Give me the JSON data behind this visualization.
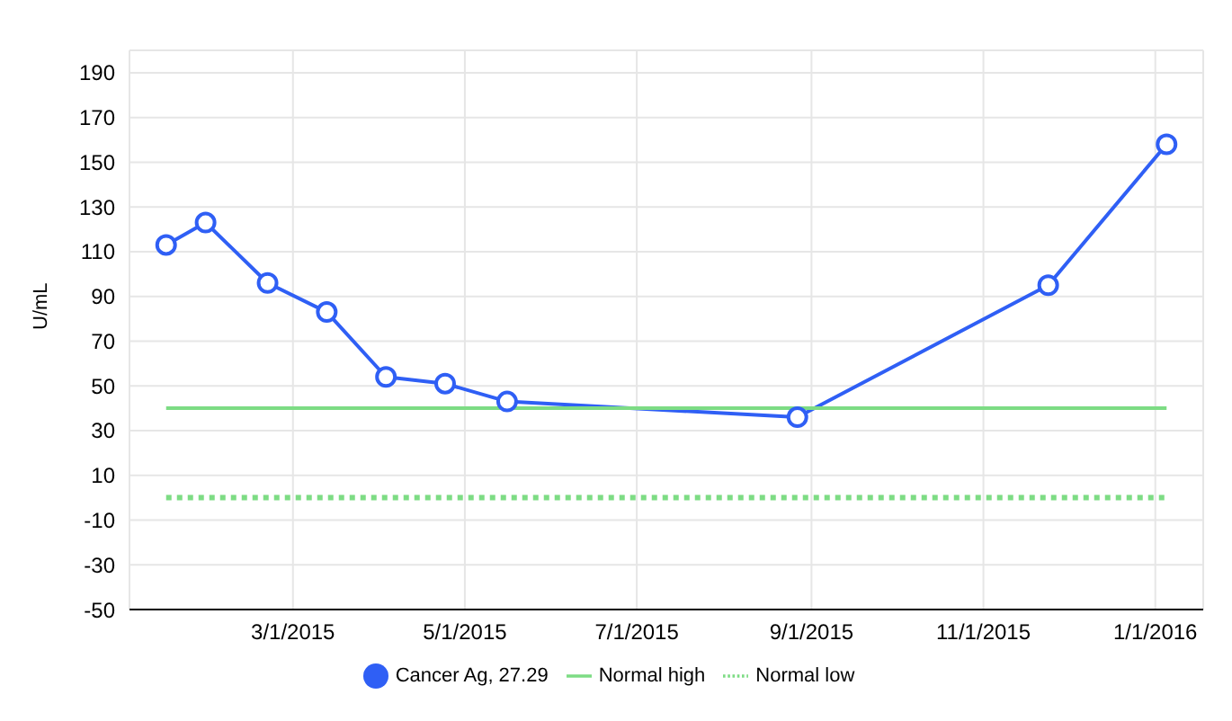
{
  "chart_data": {
    "type": "line",
    "ylabel": "U/mL",
    "xlim": [
      "2015-01-02",
      "2016-01-18"
    ],
    "xticks": [
      {
        "value": "2015-03-01",
        "label": "3/1/2015"
      },
      {
        "value": "2015-05-01",
        "label": "5/1/2015"
      },
      {
        "value": "2015-07-01",
        "label": "7/1/2015"
      },
      {
        "value": "2015-09-01",
        "label": "9/1/2015"
      },
      {
        "value": "2015-11-01",
        "label": "11/1/2015"
      },
      {
        "value": "2016-01-01",
        "label": "1/1/2016"
      }
    ],
    "ylim": [
      -50,
      200
    ],
    "yticks": [
      -50,
      -30,
      -10,
      10,
      30,
      50,
      70,
      90,
      110,
      130,
      150,
      170,
      190
    ],
    "grid": true,
    "legend": "bottom",
    "series": [
      {
        "name": "Cancer Ag, 27.29",
        "color": "#2f5ff5",
        "marker": "circle",
        "line_style": "solid",
        "x": [
          "2015-01-15",
          "2015-01-29",
          "2015-02-20",
          "2015-03-13",
          "2015-04-03",
          "2015-04-24",
          "2015-05-16",
          "2015-08-27",
          "2015-11-24",
          "2016-01-05"
        ],
        "values": [
          113,
          123,
          96,
          83,
          54,
          51,
          43,
          36,
          95,
          158
        ]
      },
      {
        "name": "Normal low",
        "color": "#7ddc84",
        "marker": "none",
        "line_style": "dotted",
        "x": [
          "2015-01-15",
          "2016-01-05"
        ],
        "values": [
          0,
          0
        ]
      },
      {
        "name": "Normal high",
        "color": "#7ddc84",
        "marker": "none",
        "line_style": "solid",
        "x": [
          "2015-01-15",
          "2016-01-05"
        ],
        "values": [
          40,
          40
        ]
      }
    ]
  }
}
